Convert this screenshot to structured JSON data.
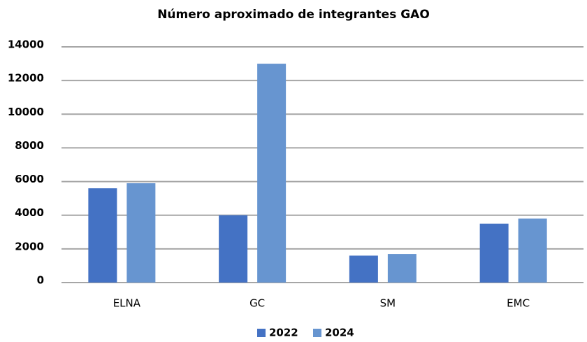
{
  "chart_data": {
    "type": "bar",
    "title": "Número aproximado de integrantes GAO",
    "categories": [
      "ELNA",
      "GC",
      "SM",
      "EMC"
    ],
    "series": [
      {
        "name": "2022",
        "color": "#4472c4",
        "values": [
          5600,
          4000,
          1600,
          3500
        ]
      },
      {
        "name": "2024",
        "color": "#6795d0",
        "values": [
          5900,
          13000,
          1700,
          3800
        ]
      }
    ],
    "ylim": [
      0,
      14000
    ],
    "yticks": [
      0,
      2000,
      4000,
      6000,
      8000,
      10000,
      12000,
      14000
    ],
    "grid": true,
    "legend": "bottom"
  }
}
